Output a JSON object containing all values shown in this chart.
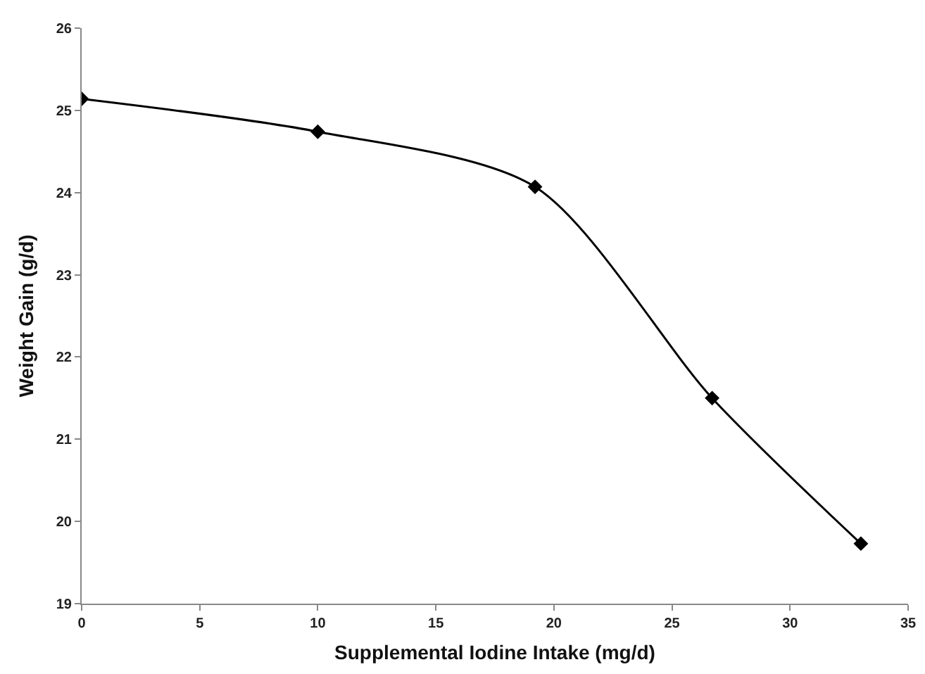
{
  "chart_data": {
    "type": "line",
    "xlabel": "Supplemental Iodine Intake (mg/d)",
    "ylabel": "Weight Gain (g/d)",
    "x": [
      0,
      10,
      19.2,
      26.7,
      33.0
    ],
    "series": [
      {
        "color": "#000000",
        "values": [
          25.14,
          24.74,
          24.07,
          21.5,
          19.73
        ]
      }
    ],
    "xlim": [
      0,
      35
    ],
    "xticks": [
      0,
      5,
      10,
      15,
      20,
      25,
      30,
      35
    ],
    "ylim": [
      19,
      26
    ],
    "yticks": [
      19,
      20,
      21,
      22,
      23,
      24,
      25,
      26
    ],
    "grid": false,
    "marker": "diamond",
    "line_style": "solid"
  }
}
